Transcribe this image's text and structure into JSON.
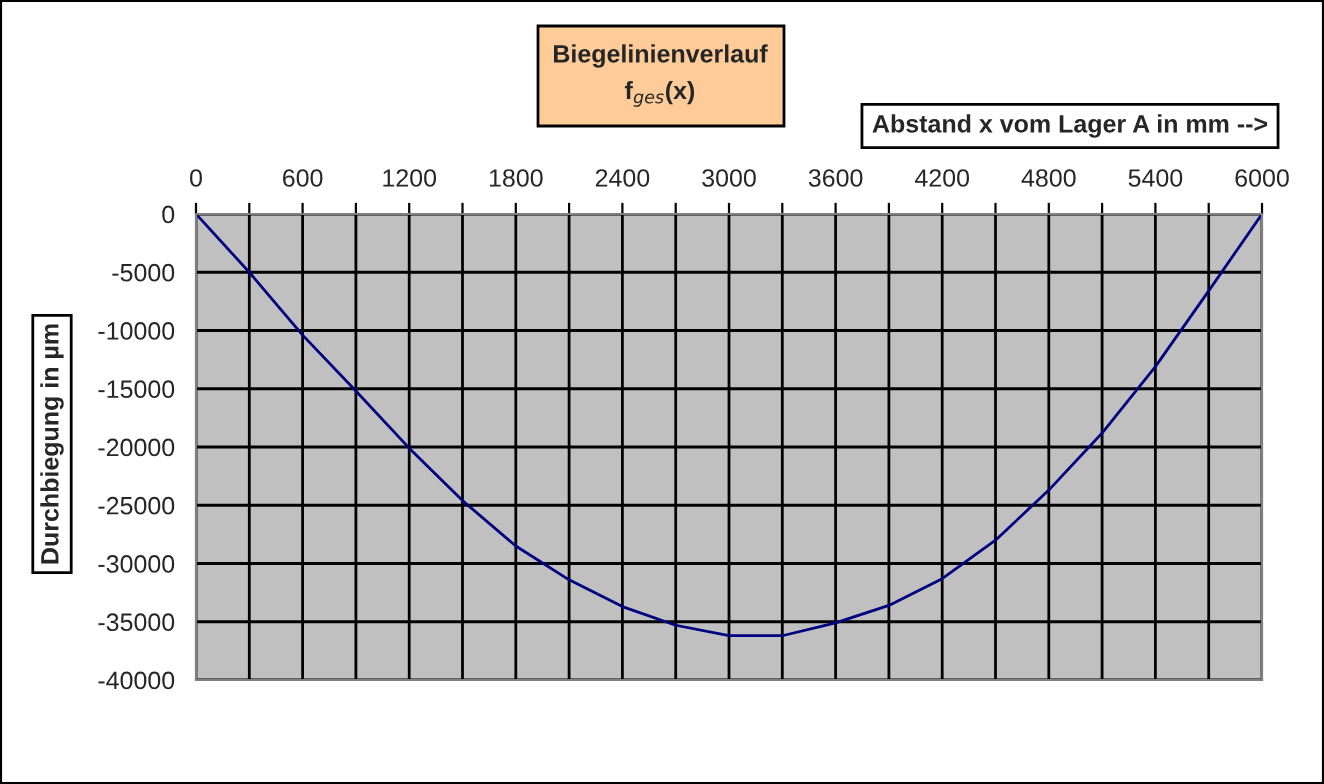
{
  "chart_data": {
    "type": "line",
    "title": "Biegelinienverlauf",
    "subtitle": "f$_{ges}$(x)",
    "xlabel": "Abstand x vom Lager A in mm -->",
    "ylabel": "Durchbiegung in µm",
    "x": [
      0,
      300,
      600,
      900,
      1200,
      1500,
      1800,
      2100,
      2400,
      2700,
      3000,
      3300,
      3600,
      3900,
      4200,
      4500,
      4800,
      5100,
      5400,
      5700,
      6000
    ],
    "series": [
      {
        "color": "#000080",
        "values": [
          0,
          -5000,
          -10400,
          -15200,
          -20100,
          -24600,
          -28500,
          -31400,
          -33700,
          -35300,
          -36200,
          -36200,
          -35100,
          -33600,
          -31300,
          -28000,
          -23700,
          -18800,
          -13100,
          -6600,
          0
        ]
      }
    ],
    "xlim": [
      0,
      6000
    ],
    "ylim": [
      -40000,
      0
    ],
    "xticks": [
      0,
      {
        "value": 300,
        "label": null
      },
      600,
      {
        "value": 900,
        "label": null
      },
      1200,
      {
        "value": 1500,
        "label": null
      },
      1800,
      {
        "value": 2100,
        "label": null
      },
      2400,
      {
        "value": 2700,
        "label": null
      },
      3000,
      {
        "value": 3300,
        "label": null
      },
      3600,
      {
        "value": 3900,
        "label": null
      },
      4200,
      {
        "value": 4500,
        "label": null
      },
      4800,
      {
        "value": 5100,
        "label": null
      },
      5400,
      {
        "value": 5700,
        "label": null
      },
      6000
    ],
    "yticks": [
      -40000,
      -35000,
      -30000,
      -25000,
      -20000,
      -15000,
      -10000,
      -5000,
      0
    ],
    "grid": true,
    "legend": false,
    "marker": "none",
    "line_style": "solid"
  }
}
